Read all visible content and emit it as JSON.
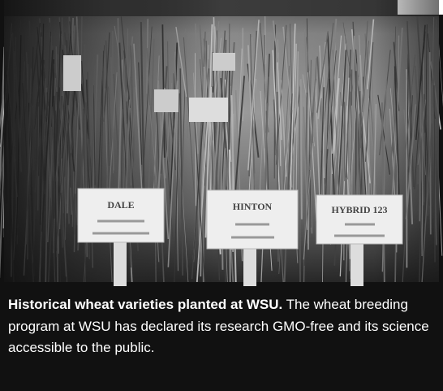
{
  "photo": {
    "signs": [
      "DALE",
      "HINTON",
      "HYBRID 123"
    ]
  },
  "caption": {
    "lead": "Historical wheat varieties planted at WSU.",
    "text": "The wheat breeding program at WSU has declared its research GMO-free and its science accessible to the public."
  }
}
